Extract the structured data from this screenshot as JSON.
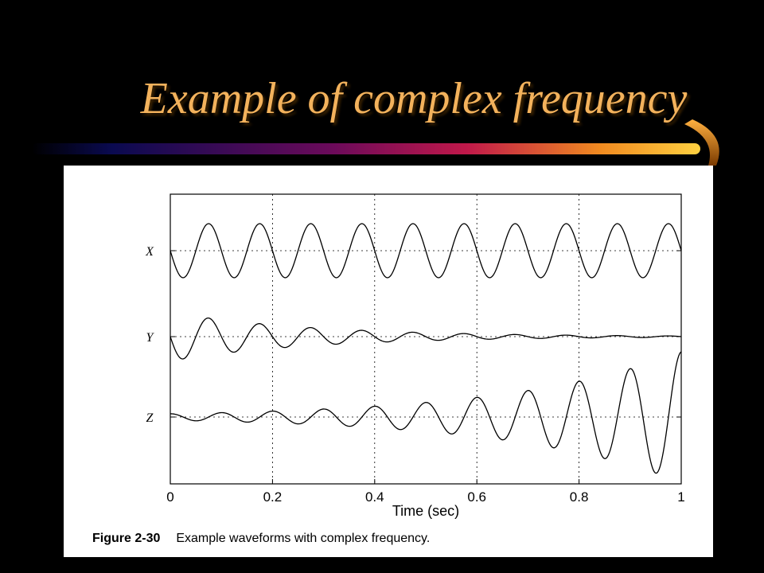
{
  "slide": {
    "title": "Example of complex frequency",
    "colors": {
      "background": "#000000",
      "title": "#f3b25c",
      "swoosh": [
        "#0a0a50",
        "#6b0a5a",
        "#c0184a",
        "#f08a20",
        "#ffd040"
      ]
    }
  },
  "caption": {
    "figure_number": "Figure 2-30",
    "text": "Example waveforms with complex frequency."
  },
  "chart_data": {
    "type": "line",
    "title": "",
    "xlabel": "Time (sec)",
    "ylabel": "",
    "xlim": [
      0,
      1
    ],
    "xticks": [
      0,
      0.2,
      0.4,
      0.6,
      0.8,
      1
    ],
    "xtick_labels": [
      "0",
      "0.2",
      "0.4",
      "0.6",
      "0.8",
      "1"
    ],
    "grid": true,
    "frequency_hz": 10,
    "series": [
      {
        "name": "X",
        "label": "X",
        "amplitude": 1.0,
        "growth_rate": 0,
        "phase": 1.5708
      },
      {
        "name": "Y",
        "label": "Y",
        "amplitude": 0.9,
        "growth_rate": -3.6,
        "phase": 1.5708
      },
      {
        "name": "Z",
        "label": "Z",
        "amplitude": 0.12,
        "growth_rate": 3.0,
        "phase": 0
      }
    ]
  }
}
